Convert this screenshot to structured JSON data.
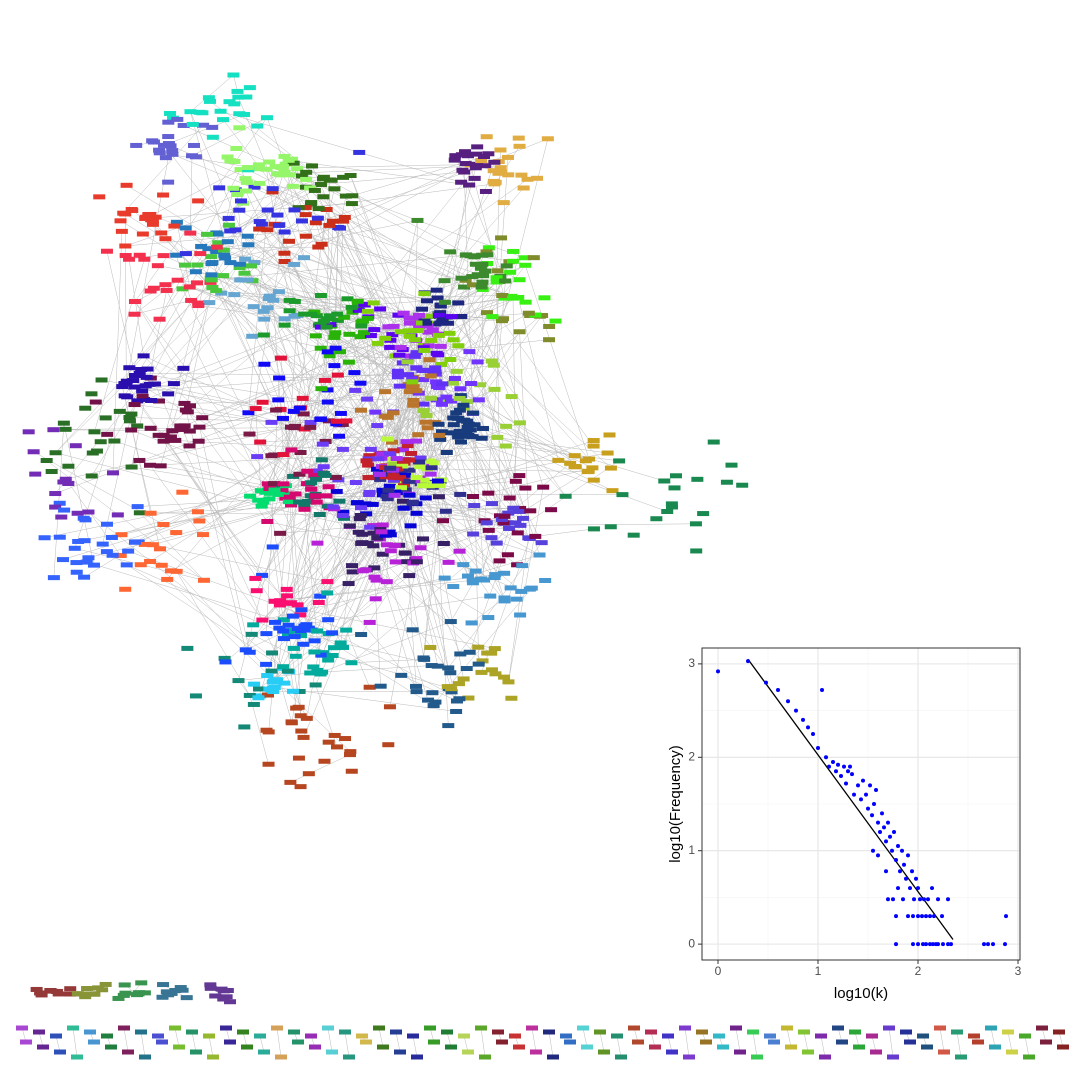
{
  "chart_data": {
    "type": "scatter",
    "xlabel": "log10(k)",
    "ylabel": "log10(Frequency)",
    "color": "#0000ff",
    "line_color": "#000000",
    "grid": true,
    "xlim": [
      -0.16,
      3.02
    ],
    "ylim": [
      -0.17,
      3.17
    ],
    "xticks": [
      0,
      1,
      2,
      3
    ],
    "yticks": [
      0,
      1,
      2,
      3
    ],
    "x": [
      0,
      0.3,
      0.48,
      0.6,
      0.7,
      0.78,
      0.85,
      0.9,
      0.95,
      1.0,
      1.04,
      1.08,
      1.11,
      1.15,
      1.18,
      1.2,
      1.23,
      1.26,
      1.28,
      1.3,
      1.32,
      1.34,
      1.36,
      1.4,
      1.43,
      1.45,
      1.48,
      1.5,
      1.52,
      1.54,
      1.56,
      1.58,
      1.6,
      1.62,
      1.64,
      1.66,
      1.68,
      1.7,
      1.72,
      1.74,
      1.76,
      1.78,
      1.8,
      1.82,
      1.84,
      1.86,
      1.88,
      1.9,
      1.92,
      1.94,
      1.96,
      1.98,
      2.0,
      2.02,
      2.04,
      2.06,
      2.08,
      2.1,
      2.12,
      2.14,
      2.16,
      2.2,
      2.24,
      2.3,
      1.7,
      1.75,
      1.8,
      1.85,
      1.9,
      1.95,
      2.0,
      1.78,
      1.68,
      1.6,
      1.55,
      1.78,
      1.95,
      2.0,
      2.05,
      2.08,
      2.12,
      2.15,
      2.18,
      2.2,
      2.25,
      2.3,
      2.33,
      2.66,
      2.7,
      2.75,
      2.87,
      2.88
    ],
    "values": [
      2.92,
      3.03,
      2.8,
      2.72,
      2.6,
      2.5,
      2.4,
      2.32,
      2.25,
      2.1,
      2.72,
      2.0,
      1.9,
      1.95,
      1.85,
      1.92,
      1.8,
      1.9,
      1.72,
      1.85,
      1.9,
      1.82,
      1.6,
      1.7,
      1.55,
      1.75,
      1.6,
      1.45,
      1.7,
      1.38,
      1.5,
      1.65,
      1.3,
      1.2,
      1.4,
      1.25,
      1.1,
      1.3,
      1.15,
      1.0,
      1.2,
      0.9,
      1.05,
      0.78,
      1.0,
      0.85,
      0.7,
      0.95,
      0.6,
      0.78,
      0.48,
      0.7,
      0.6,
      0.48,
      0.3,
      0.48,
      0.3,
      0.48,
      0.3,
      0.6,
      0.3,
      0.48,
      0.3,
      0.48,
      0.48,
      0.48,
      0.6,
      0.48,
      0.3,
      0.3,
      0.3,
      0.3,
      0.78,
      0.95,
      1.0,
      0,
      0,
      0,
      0,
      0,
      0,
      0,
      0,
      0,
      0,
      0,
      0,
      0,
      0,
      0,
      0,
      0.3
    ],
    "fit_line": {
      "x": [
        0.3,
        2.35
      ],
      "values": [
        3.05,
        0.05
      ]
    }
  }
}
